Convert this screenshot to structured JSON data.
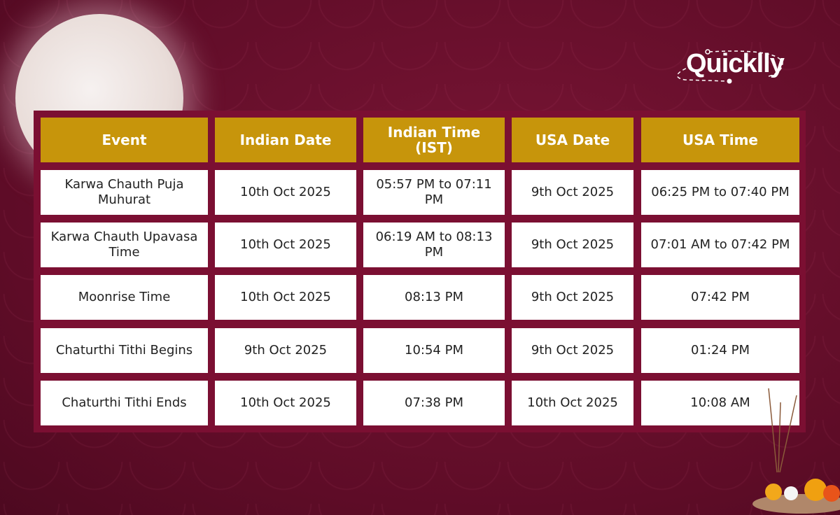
{
  "brand": {
    "logo_text": "Quicklly"
  },
  "colors": {
    "background": "#6b0f2c",
    "header_bg": "#c7950b",
    "table_frame": "#7b0f32",
    "cell_bg": "#ffffff"
  },
  "table": {
    "headers": [
      "Event",
      "Indian Date",
      "Indian Time (IST)",
      "USA Date",
      "USA Time"
    ],
    "rows": [
      [
        "Karwa Chauth Puja Muhurat",
        "10th Oct 2025",
        "05:57 PM to 07:11 PM",
        "9th Oct 2025",
        "06:25 PM to 07:40 PM"
      ],
      [
        "Karwa Chauth Upavasa Time",
        "10th Oct 2025",
        "06:19 AM to 08:13 PM",
        "9th Oct 2025",
        "07:01 AM to 07:42 PM"
      ],
      [
        "Moonrise Time",
        "10th Oct 2025",
        "08:13 PM",
        "9th Oct 2025",
        "07:42 PM"
      ],
      [
        "Chaturthi Tithi Begins",
        "9th Oct 2025",
        "10:54 PM",
        "9th Oct 2025",
        "01:24 PM"
      ],
      [
        "Chaturthi Tithi Ends",
        "10th Oct 2025",
        "07:38 PM",
        "10th Oct 2025",
        "10:08 AM"
      ]
    ]
  }
}
